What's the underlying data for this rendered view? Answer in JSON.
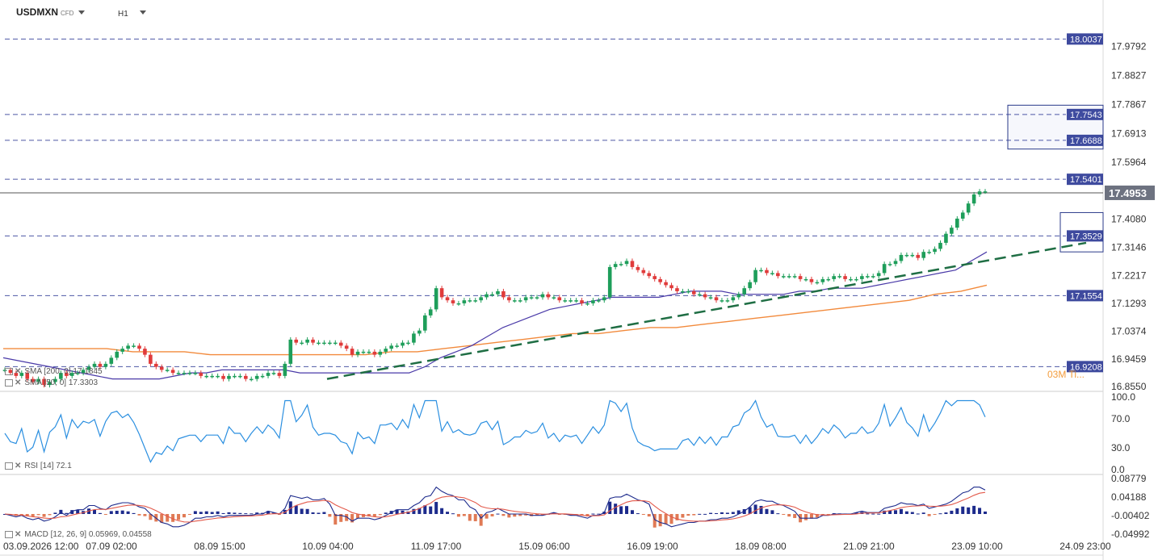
{
  "header": {
    "symbol": "USDMXN",
    "instrument_type": "CFD",
    "timeframe": "H1"
  },
  "colors": {
    "bull": "#1e9e5a",
    "bear": "#e03b3b",
    "sma50": "#4a3aa8",
    "sma200": "#f28a3c",
    "trend": "#1f6e44",
    "level": "#4d57a5",
    "level_bg": "#3e4a9e",
    "price_bg": "#6d7280",
    "rsi": "#2b8fe0",
    "macd": "#1d2b8c",
    "signal": "#e35a4b",
    "hist_pos": "#1d2b8c",
    "hist_neg": "#e07a55",
    "grid": "#e8e8e8"
  },
  "price_axis": {
    "ticks": [
      "17.9792",
      "17.8827",
      "17.7867",
      "17.6913",
      "17.5964",
      "17.4080",
      "17.3146",
      "17.2217",
      "17.1293",
      "17.0374",
      "16.9459",
      "16.8550"
    ]
  },
  "levels": [
    "18.0037",
    "17.7543",
    "17.6688",
    "17.5401",
    "17.3529",
    "17.1554",
    "16.9208"
  ],
  "current_price": "17.4953",
  "legend": {
    "sma200": "SMA [200, 0] 17.1845",
    "sma50": "SMA [50, 0] 17.3303",
    "rsi": "RSI [14] 72.1",
    "macd": "MACD [12, 26, 9] 0.05969, 0.04558",
    "orange_note": "03M Ti..."
  },
  "rsi_axis": {
    "ticks": [
      "100.0",
      "70.0",
      "30.0",
      "0.0"
    ]
  },
  "macd_axis": {
    "ticks": [
      "0.08779",
      "0.04188",
      "-0.00402",
      "-0.04992"
    ]
  },
  "time_axis": {
    "labels": [
      "03.09.2026 12:00",
      "07.09 02:00",
      "08.09 15:00",
      "10.09 04:00",
      "11.09 17:00",
      "15.09 06:00",
      "16.09 19:00",
      "18.09 08:00",
      "21.09 21:00",
      "23.09 10:00",
      "24.09 23:00"
    ]
  },
  "chart_data": {
    "type": "candlestick",
    "symbol": "USDMXN",
    "timeframe": "H1",
    "y_range": [
      16.855,
      18.01
    ],
    "closes": [
      16.91,
      16.9,
      16.89,
      16.9,
      16.88,
      16.87,
      16.88,
      16.86,
      16.87,
      16.88,
      16.9,
      16.89,
      16.9,
      16.9,
      16.91,
      16.92,
      16.93,
      16.92,
      16.93,
      16.95,
      16.97,
      16.98,
      16.99,
      16.99,
      16.98,
      16.96,
      16.93,
      16.92,
      16.91,
      16.91,
      16.9,
      16.9,
      16.9,
      16.9,
      16.9,
      16.89,
      16.89,
      16.89,
      16.89,
      16.88,
      16.89,
      16.89,
      16.89,
      16.88,
      16.88,
      16.89,
      16.89,
      16.9,
      16.9,
      16.89,
      16.93,
      17.01,
      17.0,
      17.0,
      17.01,
      17.0,
      17.0,
      17.0,
      17.0,
      17.0,
      16.99,
      16.98,
      16.96,
      16.97,
      16.97,
      16.97,
      16.96,
      16.97,
      16.98,
      16.99,
      16.99,
      17.0,
      17.0,
      17.03,
      17.04,
      17.09,
      17.11,
      17.18,
      17.15,
      17.14,
      17.13,
      17.13,
      17.14,
      17.14,
      17.14,
      17.15,
      17.16,
      17.16,
      17.17,
      17.15,
      17.14,
      17.14,
      17.14,
      17.15,
      17.15,
      17.15,
      17.16,
      17.15,
      17.15,
      17.14,
      17.14,
      17.14,
      17.14,
      17.13,
      17.13,
      17.14,
      17.14,
      17.15,
      17.25,
      17.26,
      17.26,
      17.27,
      17.25,
      17.24,
      17.23,
      17.22,
      17.21,
      17.2,
      17.19,
      17.18,
      17.17,
      17.17,
      17.17,
      17.16,
      17.16,
      17.15,
      17.15,
      17.14,
      17.14,
      17.14,
      17.15,
      17.16,
      17.18,
      17.2,
      17.24,
      17.24,
      17.23,
      17.23,
      17.22,
      17.22,
      17.22,
      17.22,
      17.21,
      17.21,
      17.2,
      17.2,
      17.21,
      17.21,
      17.22,
      17.22,
      17.21,
      17.21,
      17.21,
      17.22,
      17.22,
      17.22,
      17.23,
      17.26,
      17.26,
      17.27,
      17.29,
      17.29,
      17.29,
      17.28,
      17.3,
      17.3,
      17.31,
      17.33,
      17.36,
      17.38,
      17.41,
      17.43,
      17.46,
      17.49,
      17.5,
      17.5
    ],
    "sma50": [
      16.95,
      16.94,
      16.93,
      16.92,
      16.91,
      16.9,
      16.89,
      16.88,
      16.88,
      16.88,
      16.88,
      16.89,
      16.9,
      16.9,
      16.91,
      16.91,
      16.91,
      16.91,
      16.91,
      16.9,
      16.9,
      16.9,
      16.9,
      16.9,
      16.9,
      16.9,
      16.9,
      16.92,
      16.95,
      16.97,
      16.99,
      17.02,
      17.05,
      17.07,
      17.09,
      17.11,
      17.12,
      17.13,
      17.14,
      17.15,
      17.15,
      17.15,
      17.15,
      17.16,
      17.17,
      17.17,
      17.17,
      17.16,
      17.16,
      17.16,
      17.16,
      17.17,
      17.17,
      17.18,
      17.18,
      17.18,
      17.19,
      17.2,
      17.21,
      17.22,
      17.23,
      17.24,
      17.27,
      17.3
    ],
    "sma200": [
      16.98,
      16.98,
      16.98,
      16.98,
      16.98,
      16.97,
      16.97,
      16.97,
      16.96,
      16.96,
      16.96,
      16.96,
      16.96,
      16.96,
      16.96,
      16.97,
      16.97,
      16.98,
      16.99,
      17.0,
      17.01,
      17.02,
      17.03,
      17.03,
      17.04,
      17.05,
      17.05,
      17.06,
      17.07,
      17.08,
      17.09,
      17.1,
      17.11,
      17.12,
      17.13,
      17.14,
      17.16,
      17.17,
      17.19
    ],
    "trendline": {
      "from": 16.88,
      "to": 17.33
    },
    "horizontal_levels": [
      18.0037,
      17.7543,
      17.6688,
      17.5401,
      17.3529,
      17.1554,
      16.9208
    ],
    "last_price": 17.4953,
    "rsi_last": 72.1,
    "macd": {
      "macd": 0.05969,
      "signal": 0.04558
    }
  }
}
